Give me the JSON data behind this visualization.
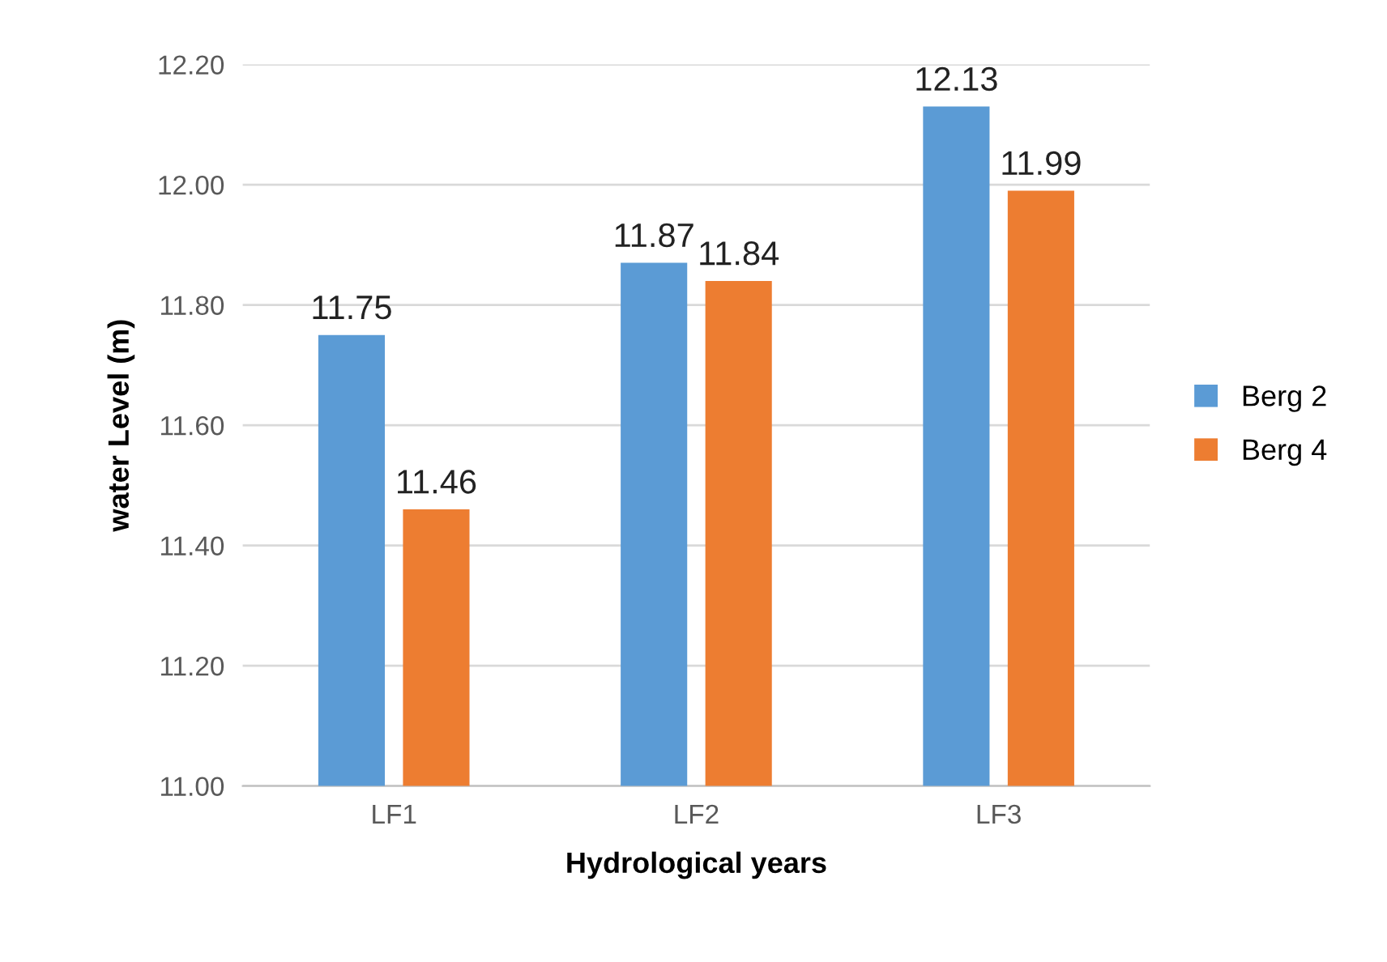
{
  "chart_data": {
    "type": "bar",
    "xlabel": "Hydrological years",
    "ylabel": "water Level (m)",
    "categories": [
      "LF1",
      "LF2",
      "LF3"
    ],
    "series": [
      {
        "name": "Berg 2",
        "color": "#5b9bd5",
        "values": [
          11.75,
          11.87,
          12.13
        ]
      },
      {
        "name": "Berg 4",
        "color": "#ed7d31",
        "values": [
          11.46,
          11.84,
          11.99
        ]
      }
    ],
    "ylim": [
      11.0,
      12.2
    ],
    "yticks": [
      {
        "value": 11.0,
        "label": "11.00"
      },
      {
        "value": 11.2,
        "label": "11.20"
      },
      {
        "value": 11.4,
        "label": "11.40"
      },
      {
        "value": 11.6,
        "label": "11.60"
      },
      {
        "value": 11.8,
        "label": "11.80"
      },
      {
        "value": 12.0,
        "label": "12.00"
      },
      {
        "value": 12.2,
        "label": "12.20"
      }
    ],
    "grid": "y",
    "legend": "right",
    "data_labels": true
  }
}
